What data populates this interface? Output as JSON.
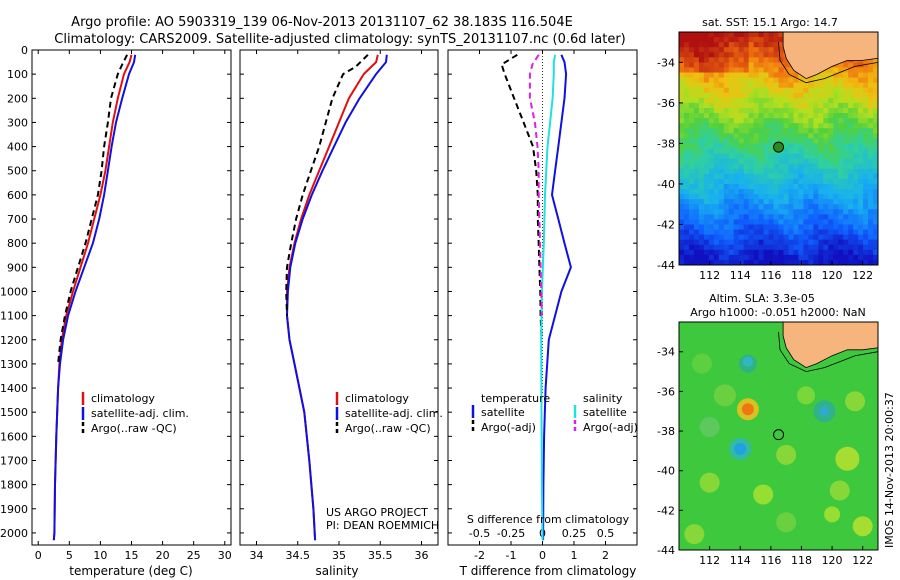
{
  "header": {
    "line1": "Argo profile: AO 5903319_139 06-Nov-2013 20131107_62 38.183S 116.504E",
    "line2": "Climatology: CARS2009. Satellite-adjusted climatology: synTS_20131107.nc (0.6d later)"
  },
  "colors": {
    "clim": "#e01010",
    "sat": "#1010e0",
    "argo": "#000000",
    "sat_s": "#20e0e0",
    "argo_s": "#e020e0",
    "land": "#f5b57c"
  },
  "chart_data": [
    {
      "type": "line",
      "xlabel": "temperature (deg C)",
      "ylabel": "",
      "xlim": [
        -1,
        31
      ],
      "ylim": [
        2050,
        0
      ],
      "xticks": [
        0,
        5,
        10,
        15,
        20,
        25,
        30
      ],
      "yticks": [
        0,
        100,
        200,
        300,
        400,
        500,
        600,
        700,
        800,
        900,
        1000,
        1100,
        1200,
        1300,
        1400,
        1500,
        1600,
        1700,
        1800,
        1900,
        2000
      ],
      "legend": {
        "position": "lower-middle",
        "entries": [
          "climatology",
          "satellite-adj. clim.",
          "Argo(..raw -QC)"
        ]
      },
      "series": [
        {
          "name": "climatology",
          "color_key": "clim",
          "dash": false,
          "x": [
            15.0,
            14.7,
            13.8,
            12.8,
            12.0,
            11.4,
            10.8,
            10.0,
            9.0,
            8.0,
            6.8,
            5.6,
            4.5,
            3.8,
            3.4,
            3.2,
            2.9,
            2.7,
            2.6,
            2.5
          ],
          "y": [
            20,
            50,
            100,
            200,
            300,
            400,
            500,
            600,
            700,
            800,
            900,
            1000,
            1100,
            1200,
            1300,
            1400,
            1600,
            1800,
            2000,
            2030
          ]
        },
        {
          "name": "satellite-adj. clim.",
          "color_key": "sat",
          "dash": false,
          "x": [
            15.6,
            15.4,
            14.6,
            13.5,
            12.5,
            11.8,
            11.2,
            10.6,
            9.8,
            8.8,
            7.4,
            6.0,
            4.8,
            4.0,
            3.5,
            3.2,
            2.9,
            2.7,
            2.6,
            2.5
          ],
          "y": [
            20,
            50,
            100,
            200,
            300,
            400,
            500,
            600,
            700,
            800,
            900,
            1000,
            1100,
            1200,
            1300,
            1400,
            1600,
            1800,
            2000,
            2030
          ]
        },
        {
          "name": "Argo(..raw -QC)",
          "color_key": "argo",
          "dash": true,
          "x": [
            14.3,
            13.5,
            12.8,
            11.7,
            11.2,
            10.6,
            10.2,
            9.6,
            8.6,
            7.6,
            6.4,
            5.2,
            4.3,
            3.6,
            3.2
          ],
          "y": [
            20,
            60,
            100,
            200,
            300,
            400,
            500,
            600,
            700,
            800,
            900,
            1000,
            1100,
            1200,
            1300
          ]
        }
      ]
    },
    {
      "type": "line",
      "xlabel": "salinity",
      "xlim": [
        33.8,
        36.2
      ],
      "ylim": [
        2050,
        0
      ],
      "xticks": [
        34,
        34.5,
        35,
        35.5,
        36
      ],
      "legend": {
        "position": "lower-middle",
        "entries": [
          "climatology",
          "satellite-adj. clim.",
          "Argo(..raw -QC)"
        ]
      },
      "annotation": [
        "US ARGO PROJECT",
        "PI: DEAN ROEMMICH"
      ],
      "series": [
        {
          "name": "climatology",
          "color_key": "clim",
          "dash": false,
          "x": [
            35.47,
            35.45,
            35.3,
            35.12,
            35.0,
            34.88,
            34.76,
            34.64,
            34.54,
            34.46,
            34.4,
            34.37,
            34.37,
            34.4,
            34.46,
            34.52,
            34.58,
            34.64,
            34.69,
            34.71
          ],
          "y": [
            20,
            50,
            100,
            200,
            300,
            400,
            500,
            600,
            700,
            800,
            900,
            1000,
            1100,
            1200,
            1300,
            1400,
            1500,
            1700,
            1900,
            2030
          ]
        },
        {
          "name": "satellite-adj. clim.",
          "color_key": "sat",
          "dash": false,
          "x": [
            35.58,
            35.57,
            35.45,
            35.25,
            35.08,
            34.94,
            34.8,
            34.67,
            34.56,
            34.47,
            34.41,
            34.38,
            34.37,
            34.4,
            34.46,
            34.52,
            34.58,
            34.64,
            34.69,
            34.71
          ],
          "y": [
            20,
            50,
            100,
            200,
            300,
            400,
            500,
            600,
            700,
            800,
            900,
            1000,
            1100,
            1200,
            1300,
            1400,
            1500,
            1700,
            1900,
            2030
          ]
        },
        {
          "name": "Argo(..raw -QC)",
          "color_key": "argo",
          "dash": true,
          "x": [
            35.35,
            35.2,
            35.05,
            34.92,
            34.84,
            34.76,
            34.66,
            34.56,
            34.48,
            34.42,
            34.37,
            34.36,
            34.37
          ],
          "y": [
            20,
            70,
            100,
            200,
            300,
            400,
            500,
            600,
            700,
            800,
            900,
            1000,
            1100
          ]
        }
      ]
    },
    {
      "type": "line",
      "xlabel": "T difference from climatology",
      "top_label": "S difference from climatology",
      "xlim": [
        -3,
        3
      ],
      "ylim": [
        2050,
        0
      ],
      "xticks": [
        -2,
        -1,
        0,
        1,
        2
      ],
      "xtick_labels": [
        "-2",
        "-1",
        "0",
        "1",
        "2"
      ],
      "sticks": [
        -0.5,
        -0.25,
        0,
        0.25,
        0.5
      ],
      "stick_labels": [
        "-0.5",
        "-0.25",
        "0",
        "0.25",
        "0.5"
      ],
      "legend": {
        "position": "lower-middle",
        "t_header": "temperature",
        "s_header": "salinity",
        "t_entries": [
          "satellite",
          "Argo(-adj)"
        ],
        "s_entries": [
          "satellite",
          "Argo(-adj)"
        ]
      },
      "series": [
        {
          "name": "satellite",
          "kind": "T",
          "color_key": "sat",
          "dash": false,
          "x": [
            0.6,
            0.7,
            0.75,
            0.7,
            0.6,
            0.5,
            0.4,
            0.3,
            0.5,
            0.7,
            0.9,
            0.6,
            0.4,
            0.2,
            0.1,
            0.05,
            0.03,
            0.02
          ],
          "y": [
            20,
            50,
            100,
            200,
            300,
            400,
            500,
            600,
            700,
            800,
            900,
            1000,
            1100,
            1200,
            1400,
            1600,
            1800,
            2030
          ]
        },
        {
          "name": "Argo(-adj)",
          "kind": "T",
          "color_key": "argo",
          "dash": true,
          "x": [
            -0.8,
            -1.3,
            -1.2,
            -0.9,
            -0.6,
            -0.3,
            -0.2,
            -0.15,
            -0.15,
            -0.12,
            -0.1,
            -0.07,
            -0.06,
            -0.03
          ],
          "y": [
            20,
            60,
            100,
            200,
            300,
            400,
            500,
            600,
            700,
            800,
            900,
            1000,
            1100,
            1200
          ]
        },
        {
          "name": "satellite",
          "kind": "S",
          "color_key": "sat_s",
          "dash": false,
          "x": [
            0.1,
            0.09,
            0.09,
            0.08,
            0.06,
            0.04,
            0.02,
            0.01,
            -0.005,
            -0.01,
            -0.008,
            -0.005,
            0.0
          ],
          "y": [
            20,
            50,
            100,
            200,
            300,
            400,
            600,
            800,
            1000,
            1200,
            1500,
            1800,
            2030
          ]
        },
        {
          "name": "Argo(-adj)",
          "kind": "S",
          "color_key": "argo_s",
          "dash": true,
          "x": [
            -0.03,
            -0.08,
            -0.1,
            -0.1,
            -0.06,
            -0.04,
            -0.03,
            -0.03,
            -0.02,
            -0.01,
            -0.005
          ],
          "y": [
            20,
            60,
            100,
            200,
            300,
            400,
            500,
            600,
            800,
            1000,
            1100
          ]
        }
      ]
    },
    {
      "type": "heatmap",
      "title": "sat. SST: 15.1 Argo: 14.7",
      "xlim": [
        110,
        123
      ],
      "ylim": [
        -44,
        -32.5
      ],
      "xticks": [
        112,
        114,
        116,
        118,
        120,
        122
      ],
      "yticks": [
        -34,
        -36,
        -38,
        -40,
        -42,
        -44
      ],
      "marker": {
        "lon": 116.504,
        "lat": -38.183
      }
    },
    {
      "type": "heatmap",
      "title": "Altim. SLA: 3.3e-05",
      "title2": "Argo h1000: -0.051 h2000: NaN",
      "xlim": [
        110,
        123
      ],
      "ylim": [
        -44,
        -32.5
      ],
      "xticks": [
        112,
        114,
        116,
        118,
        120,
        122
      ],
      "yticks": [
        -34,
        -36,
        -38,
        -40,
        -42,
        -44
      ],
      "marker": {
        "lon": 116.504,
        "lat": -38.183
      }
    }
  ],
  "footer": {
    "stamp": "IMOS 14-Nov-2013 20:00:37"
  }
}
